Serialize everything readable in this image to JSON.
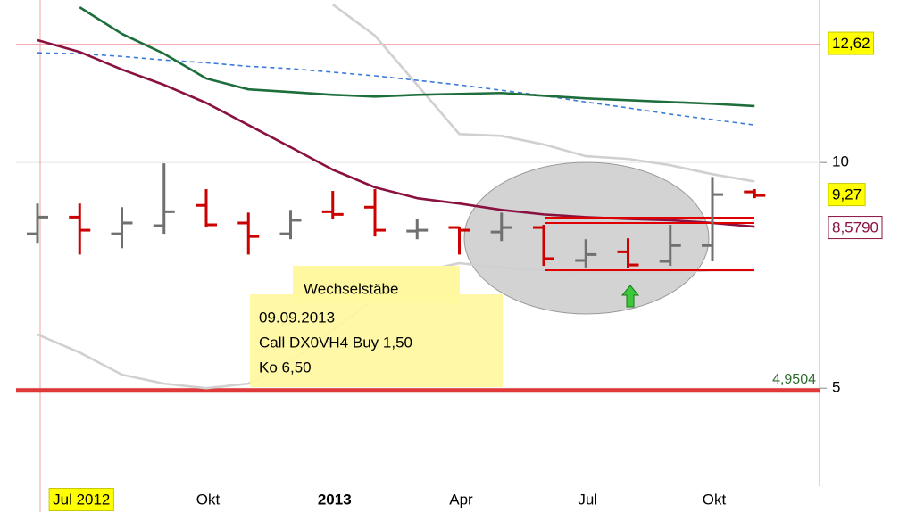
{
  "chart_data": {
    "type": "ohlc",
    "categories": [
      null,
      "Jul 2012",
      null,
      null,
      "Okt",
      null,
      null,
      "2013",
      null,
      null,
      "Apr",
      null,
      null,
      "Jul",
      null,
      null,
      "Okt",
      null
    ],
    "ohlc": {
      "open": [
        8.42,
        8.79,
        8.42,
        8.6,
        9.05,
        8.66,
        8.42,
        8.91,
        9.01,
        8.48,
        8.56,
        8.46,
        8.56,
        7.83,
        8.02,
        7.81,
        8.16,
        9.35
      ],
      "high": [
        9.09,
        9.09,
        9.01,
        9.98,
        9.41,
        8.89,
        8.95,
        9.37,
        9.41,
        8.75,
        8.56,
        8.89,
        8.62,
        8.3,
        8.32,
        8.62,
        9.68,
        9.41
      ],
      "low": [
        8.22,
        7.96,
        8.1,
        8.42,
        8.56,
        7.96,
        8.3,
        8.75,
        8.36,
        8.3,
        7.96,
        8.26,
        7.71,
        7.67,
        7.67,
        7.71,
        7.81,
        9.21
      ],
      "close": [
        8.79,
        8.5,
        8.66,
        8.91,
        8.62,
        8.36,
        8.72,
        8.85,
        8.5,
        8.5,
        8.5,
        8.56,
        7.87,
        7.96,
        7.73,
        8.16,
        9.29,
        9.27
      ],
      "up_color": "#707070",
      "down_color": "#cc0000"
    },
    "series": [
      {
        "color": "#d0d0d0",
        "values": [
          6.19,
          5.79,
          5.3,
          5.1,
          5.0,
          5.1,
          5.59,
          6.28,
          6.98,
          7.57,
          7.77,
          7.67,
          7.61,
          7.57,
          7.57,
          7.57,
          7.61,
          7.61
        ]
      },
      {
        "color": "#d0d0d0",
        "values": [
          null,
          null,
          null,
          null,
          null,
          null,
          null,
          13.5,
          12.81,
          11.72,
          10.63,
          10.59,
          10.4,
          10.14,
          10.08,
          9.94,
          9.74,
          9.58
        ]
      },
      {
        "color": "#3a7ad8",
        "dashed": true,
        "values": [
          12.43,
          12.41,
          12.35,
          12.27,
          12.21,
          12.13,
          12.08,
          12.0,
          11.92,
          11.82,
          11.72,
          11.6,
          11.48,
          11.34,
          11.21,
          11.07,
          10.95,
          10.83
        ]
      },
      {
        "color": "#1e6e3c",
        "values": [
          null,
          13.44,
          12.85,
          12.41,
          11.86,
          11.62,
          11.56,
          11.5,
          11.46,
          11.5,
          11.52,
          11.54,
          11.48,
          11.42,
          11.38,
          11.34,
          11.3,
          11.25
        ]
      },
      {
        "color": "#8a1040",
        "values": [
          12.71,
          12.45,
          12.06,
          11.72,
          11.32,
          10.83,
          10.34,
          9.84,
          9.45,
          9.21,
          9.09,
          8.95,
          8.85,
          8.79,
          8.75,
          8.72,
          8.66,
          8.579
        ]
      }
    ],
    "ylim": [
      2.83,
      13.6
    ],
    "yticks": [
      5,
      10
    ],
    "grid": true,
    "levels": [
      {
        "value": 4.9504,
        "label": "4,9504",
        "color": "#e03838"
      }
    ],
    "markers": [
      {
        "value": 12.62,
        "label": "12,62",
        "color": "#f4a0a0"
      }
    ],
    "last_labels": [
      {
        "value": 9.27,
        "label": "9,27"
      },
      {
        "value": 8.579,
        "label": "8,5790"
      }
    ],
    "annotation_title": "Wechselstäbe",
    "annotation_lines": [
      "09.09.2013",
      "Call DX0VH4 Buy 1,50",
      "Ko 6,50"
    ]
  }
}
